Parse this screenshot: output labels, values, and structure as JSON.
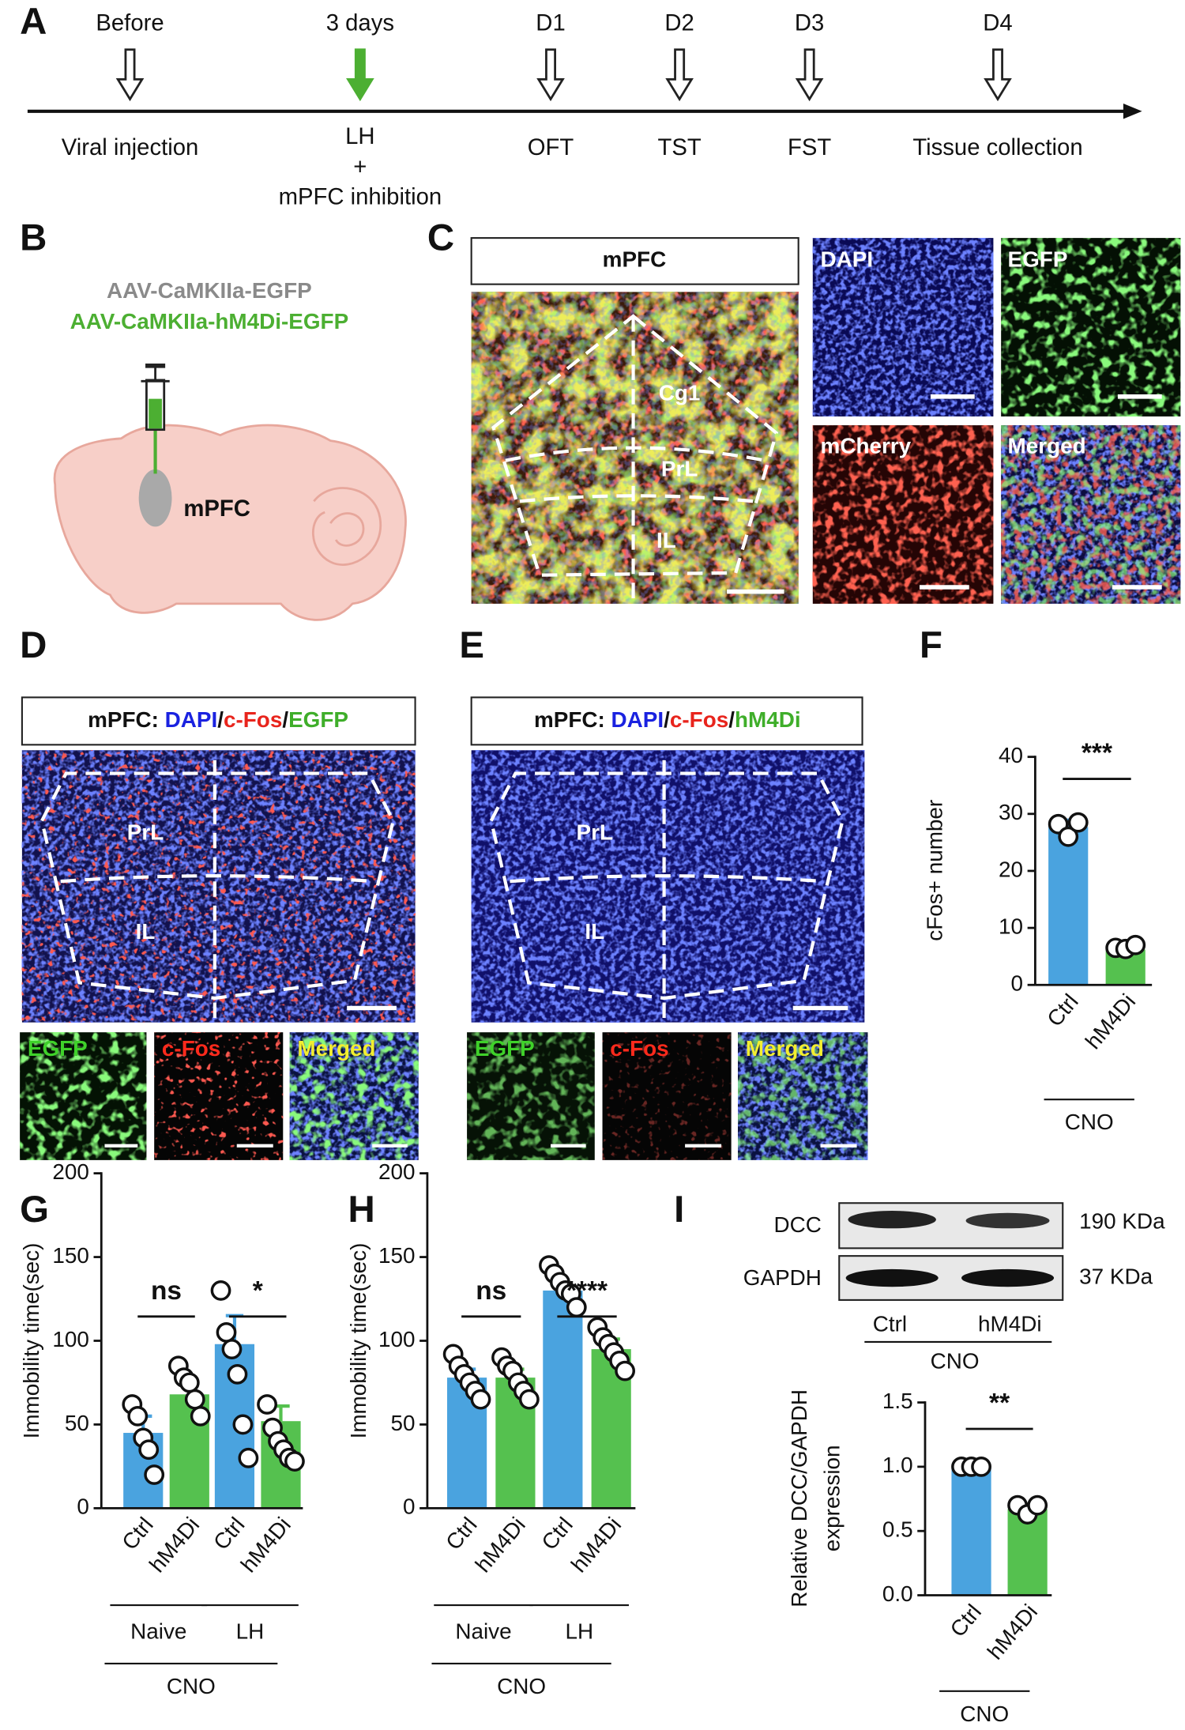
{
  "panel_labels": [
    "A",
    "B",
    "C",
    "D",
    "E",
    "F",
    "G",
    "H",
    "I"
  ],
  "timeline": {
    "events": [
      {
        "top": "Before",
        "bottom": [
          "Viral injection"
        ]
      },
      {
        "top": "3 days",
        "bottom": [
          "LH",
          "+",
          "mPFC inhibition"
        ],
        "color": "#4caf32"
      },
      {
        "top": "D1",
        "bottom": [
          "OFT"
        ]
      },
      {
        "top": "D2",
        "bottom": [
          "TST"
        ]
      },
      {
        "top": "D3",
        "bottom": [
          "FST"
        ]
      },
      {
        "top": "D4",
        "bottom": [
          "Tissue collection"
        ]
      }
    ]
  },
  "panel_b": {
    "vectors": [
      {
        "text": "AAV-CaMKIIa-EGFP",
        "color": "#8a8a8a"
      },
      {
        "text": "AAV-CaMKIIa-hM4Di-EGFP",
        "color": "#4caf32"
      }
    ],
    "region": "mPFC"
  },
  "panel_c": {
    "title": "mPFC",
    "regions": [
      "Cg1",
      "PrL",
      "IL"
    ],
    "insets": [
      "DAPI",
      "EGFP",
      "mCherry",
      "Merged"
    ]
  },
  "panel_d": {
    "title": [
      {
        "text": "mPFC: ",
        "color": "#111111"
      },
      {
        "text": "DAPI",
        "color": "#1a22e0"
      },
      {
        "text": "/",
        "color": "#111111"
      },
      {
        "text": "c-Fos",
        "color": "#e8241c"
      },
      {
        "text": "/",
        "color": "#111111"
      },
      {
        "text": "EGFP",
        "color": "#3fae2a"
      }
    ],
    "regions": [
      "PrL",
      "IL"
    ],
    "insets": [
      {
        "text": "EGFP",
        "color": "#3fd12a"
      },
      {
        "text": "c-Fos",
        "color": "#ff2a1c"
      },
      {
        "text": "Merged",
        "color": "#f2ee30"
      }
    ]
  },
  "panel_e": {
    "title": [
      {
        "text": "mPFC: ",
        "color": "#111111"
      },
      {
        "text": "DAPI",
        "color": "#1a22e0"
      },
      {
        "text": "/",
        "color": "#111111"
      },
      {
        "text": "c-Fos",
        "color": "#e8241c"
      },
      {
        "text": "/",
        "color": "#111111"
      },
      {
        "text": "hM4Di",
        "color": "#3fae2a"
      }
    ],
    "regions": [
      "PrL",
      "IL"
    ],
    "insets": [
      {
        "text": "EGFP",
        "color": "#3fd12a"
      },
      {
        "text": "c-Fos",
        "color": "#ff2a1c"
      },
      {
        "text": "Merged",
        "color": "#f2ee30"
      }
    ]
  },
  "blot": {
    "bands": [
      {
        "name": "DCC",
        "size": "190 KDa"
      },
      {
        "name": "GAPDH",
        "size": "37 KDa"
      }
    ],
    "lanes": [
      "Ctrl",
      "hM4Di"
    ],
    "treatment": "CNO"
  },
  "chart_data": [
    {
      "type": "bar",
      "ylabel": [
        "cFos+ number"
      ],
      "categories": [
        "Ctrl",
        "hM4Di"
      ],
      "colors": [
        "#4aa3df",
        "#55c14f"
      ],
      "values": [
        27.7,
        6.2
      ],
      "errors": [
        1.2,
        0.6
      ],
      "points": [
        [
          28.2,
          26,
          28.5
        ],
        [
          6.5,
          6.3,
          7
        ]
      ],
      "ylim": [
        0,
        40
      ],
      "yticks": [
        0,
        10,
        20,
        30,
        40
      ],
      "significance": [
        "***"
      ],
      "treatment": "CNO"
    },
    {
      "type": "bar",
      "ylabel": [
        "Immobility time(sec)"
      ],
      "categories": [
        "Ctrl",
        "hM4Di",
        "Ctrl",
        "hM4Di"
      ],
      "colors": [
        "#4aa3df",
        "#55c14f",
        "#4aa3df",
        "#55c14f"
      ],
      "values": [
        45,
        68,
        98,
        52
      ],
      "errors": [
        10,
        8,
        17,
        9
      ],
      "points": [
        [
          62,
          55,
          42,
          35,
          20
        ],
        [
          85,
          78,
          75,
          65,
          55
        ],
        [
          130,
          105,
          95,
          80,
          50,
          30
        ],
        [
          62,
          48,
          40,
          35,
          30,
          28
        ]
      ],
      "ylim": [
        0,
        200
      ],
      "yticks": [
        0,
        50,
        100,
        150,
        200
      ],
      "groups": [
        "Naive",
        "LH"
      ],
      "significance": [
        "ns",
        "*"
      ],
      "treatment": "CNO"
    },
    {
      "type": "bar",
      "ylabel": [
        "Immobility time(sec)"
      ],
      "categories": [
        "Ctrl",
        "hM4Di",
        "Ctrl",
        "hM4Di"
      ],
      "colors": [
        "#4aa3df",
        "#55c14f",
        "#4aa3df",
        "#55c14f"
      ],
      "values": [
        78,
        78,
        130,
        95
      ],
      "errors": [
        5,
        5,
        4,
        6
      ],
      "points": [
        [
          92,
          85,
          80,
          75,
          70,
          65
        ],
        [
          90,
          85,
          82,
          75,
          70,
          65
        ],
        [
          145,
          140,
          135,
          130,
          128,
          120
        ],
        [
          108,
          102,
          98,
          93,
          88,
          82
        ]
      ],
      "ylim": [
        0,
        200
      ],
      "yticks": [
        0,
        50,
        100,
        150,
        200
      ],
      "groups": [
        "Naive",
        "LH"
      ],
      "significance": [
        "ns",
        "****"
      ],
      "treatment": "CNO"
    },
    {
      "type": "bar",
      "ylabel": [
        "Relative DCC/GAPDH",
        "expression"
      ],
      "categories": [
        "Ctrl",
        "hM4Di"
      ],
      "colors": [
        "#4aa3df",
        "#55c14f"
      ],
      "values": [
        1.0,
        0.67
      ],
      "errors": [
        0,
        0.04
      ],
      "points": [
        [
          1,
          1,
          1
        ],
        [
          0.7,
          0.63,
          0.7
        ]
      ],
      "ylim": [
        0,
        1.5
      ],
      "yticks": [
        {
          "value": 0,
          "label": "0.0"
        },
        0.5,
        {
          "value": 1,
          "label": "1.0"
        },
        1.5
      ],
      "significance": [
        "**"
      ],
      "treatment": "CNO"
    }
  ]
}
